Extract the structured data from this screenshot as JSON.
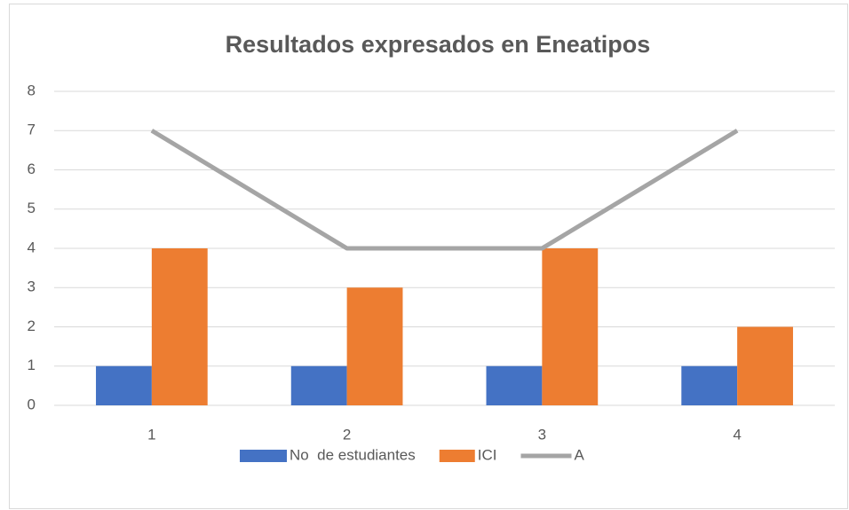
{
  "chart_data": {
    "type": "bar",
    "title": "Resultados expresados en Eneatipos",
    "categories": [
      "1",
      "2",
      "3",
      "4"
    ],
    "series": [
      {
        "name": "No  de estudiantes",
        "type": "bar",
        "color": "#4472c4",
        "values": [
          1,
          1,
          1,
          1
        ]
      },
      {
        "name": "ICI",
        "type": "bar",
        "color": "#ed7d31",
        "values": [
          4,
          3,
          4,
          2
        ]
      },
      {
        "name": "A",
        "type": "line",
        "color": "#a5a5a5",
        "values": [
          7,
          4,
          4,
          7
        ]
      }
    ],
    "ylim": [
      0,
      8
    ],
    "yticks": [
      0,
      1,
      2,
      3,
      4,
      5,
      6,
      7,
      8
    ],
    "grid": true,
    "legend": "bottom"
  }
}
